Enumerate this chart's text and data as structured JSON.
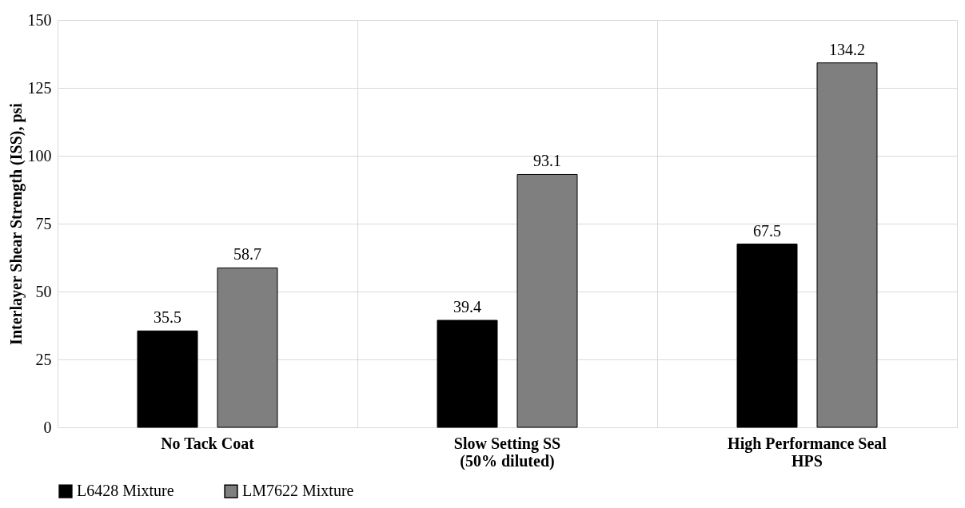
{
  "chart_data": {
    "type": "bar",
    "ylabel": "Interlayer Shear Strength (ISS), psi",
    "categories": [
      "No Tack Coat",
      "Slow Setting SS\n(50% diluted)",
      "High Performance Seal\nHPS"
    ],
    "series": [
      {
        "name": "L6428 Mixture",
        "color": "#000000",
        "values": [
          35.5,
          39.4,
          67.5
        ]
      },
      {
        "name": "LM7622 Mixture",
        "color": "#7f7f7f",
        "values": [
          58.7,
          93.1,
          134.2
        ]
      }
    ],
    "ylim": [
      0,
      150
    ],
    "yticks": [
      0,
      25,
      50,
      75,
      100,
      125,
      150
    ],
    "grid": true,
    "legend": "bottom",
    "data_labels": true
  }
}
